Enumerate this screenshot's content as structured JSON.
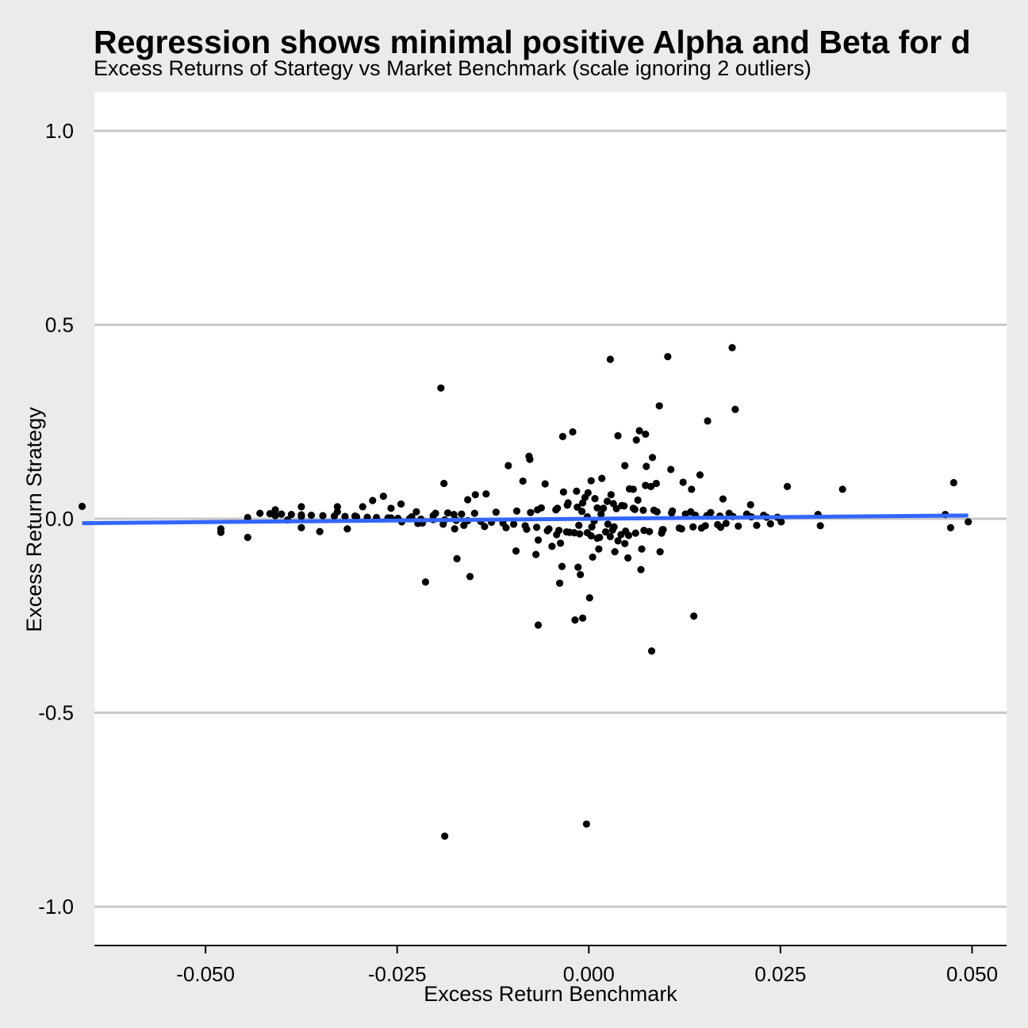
{
  "chart_data": {
    "type": "scatter",
    "title": "Regression shows minimal positive Alpha and Beta for d",
    "subtitle": "Excess Returns of Startegy vs Market Benchmark (scale ignoring 2 outliers)",
    "xlabel": "Excess Return Benchmark",
    "ylabel": "Excess Return Strategy",
    "xlim": [
      -0.0645,
      0.0545
    ],
    "ylim": [
      -1.1,
      1.1
    ],
    "x_ticks": [
      -0.05,
      -0.025,
      0.0,
      0.025,
      0.05
    ],
    "x_tick_labels": [
      "-0.050",
      "-0.025",
      "0.000",
      "0.025",
      "0.050"
    ],
    "y_ticks": [
      1.0,
      0.5,
      0.0,
      -0.5,
      -1.0
    ],
    "y_tick_labels": [
      "1.0",
      "0.5",
      "0.0",
      "-0.5",
      "-1.0"
    ],
    "grid": "horizontal major",
    "colors": {
      "background": "#ebebeb",
      "panel": "#ffffff",
      "grid": "#c8c8c8",
      "points": "#000000",
      "regression_line": "#3366ff"
    },
    "regression": {
      "x": [
        -0.0661,
        0.0495
      ],
      "y": [
        -0.0115,
        0.0085
      ]
    },
    "points": {
      "x": [
        -0.0661,
        -0.048,
        -0.048,
        -0.0445,
        -0.0445,
        -0.0409,
        -0.0409,
        -0.0375,
        -0.0375,
        -0.0375,
        -0.0393,
        -0.0351,
        -0.0328,
        -0.0328,
        -0.0315,
        -0.0305,
        -0.0295,
        -0.0282,
        -0.0268,
        -0.0258,
        -0.0245,
        -0.0225,
        -0.0213,
        -0.02,
        -0.0189,
        -0.0188,
        -0.0172,
        -0.0166,
        -0.0155,
        -0.0148,
        -0.0134,
        -0.0105,
        -0.0095,
        -0.0078,
        -0.0077,
        -0.0066,
        -0.0035,
        -0.0018,
        -0.0034,
        -0.0021,
        -0.0038,
        -0.0008,
        0.0001,
        -0.0003,
        0.0028,
        0.0038,
        0.0047,
        0.0053,
        0.0062,
        0.0066,
        0.0074,
        0.0082,
        0.0075,
        0.0083,
        0.0092,
        0.0103,
        0.0107,
        0.0123,
        0.0155,
        0.0187,
        0.0191,
        0.0137,
        0.0145,
        0.0175,
        0.0211,
        0.0259,
        0.0331,
        0.0476,
        0.0472,
        0.0495,
        0.0465,
        0.0299,
        0.0302,
        -0.0193,
        -0.0223,
        -0.0175,
        -0.0158,
        -0.0066,
        -0.0037,
        -0.0042,
        -0.0014,
        -0.0011,
        -0.0016,
        0.0003,
        -0.0001,
        0.0033,
        0.0074,
        0.0088,
        0.0134,
        0.0068,
        0.0051,
        0.0013,
        0.0034,
        0.0095,
        -0.0184,
        -0.0013,
        -0.0076,
        -0.0043,
        -0.0062,
        -0.0028,
        -0.0008,
        0.0008,
        0.0024,
        0.0032,
        0.0046,
        0.0058,
        0.0071,
        0.0089,
        0.0108,
        0.0126,
        0.0139,
        0.0154,
        0.0171,
        0.0188,
        0.0212,
        0.0232,
        0.0179,
        0.0168,
        0.0152,
        0.0136,
        0.0118,
        0.0097,
        0.0079,
        0.0061,
        0.0042,
        0.0028,
        0.0014,
        0.0003,
        -0.0012,
        -0.0025,
        -0.0039,
        -0.0052,
        -0.0068,
        -0.0083,
        -0.0098,
        -0.0112,
        -0.0127,
        -0.0141,
        -0.0158,
        -0.0173,
        -0.0188,
        -0.0203,
        -0.0219,
        -0.0234,
        -0.0249,
        -0.0262,
        -0.0277,
        -0.0289,
        -0.0303,
        -0.0318,
        -0.0332,
        -0.0347,
        -0.0362,
        -0.0375,
        -0.0388,
        -0.0401,
        -0.0416,
        -0.0429,
        0.0251,
        0.0246,
        0.0237,
        0.0228,
        0.0219,
        0.0206,
        0.0195,
        0.0183,
        0.0172,
        0.0159,
        0.0147,
        0.0133,
        0.0121,
        0.0109,
        0.0096,
        0.0085,
        0.0072,
        0.006,
        0.0048,
        0.0036,
        0.0022,
        0.0011,
        -0.0002,
        -0.0015,
        -0.0029,
        -0.0041,
        -0.0054,
        -0.0067,
        -0.0081,
        -0.0094,
        -0.0108,
        -0.0121,
        -0.0136,
        -0.0149,
        -0.0163,
        -0.0176,
        -0.019,
        -0.0203,
        -0.0217,
        -0.0231,
        -0.0244,
        -0.0258,
        -0.0002,
        0.0007,
        0.0016,
        0.0025,
        -0.0009,
        0.0004,
        0.0019,
        0.0031,
        0.0043,
        -0.0019,
        -0.0027,
        0.0052,
        0.0064,
        0.0011,
        -0.0005,
        0.0038,
        0.0029,
        0.0047,
        -0.0033,
        -0.0048,
        0.0058,
        0.0069,
        0.0081,
        0.0093,
        -0.0057,
        -0.0069,
        -0.0086,
        0.0005,
        0.0017
      ],
      "y": [
        0.032,
        -0.026,
        -0.035,
        0.003,
        -0.048,
        0.023,
        0.008,
        0.031,
        0.006,
        -0.023,
        -0.003,
        -0.033,
        0.031,
        0.018,
        -0.026,
        0.007,
        0.031,
        0.047,
        0.058,
        0.027,
        0.038,
        0.018,
        -0.163,
        0.014,
        0.091,
        -0.818,
        -0.103,
        0.012,
        -0.149,
        0.062,
        0.064,
        0.137,
        -0.083,
        0.161,
        0.153,
        -0.274,
        -0.123,
        -0.261,
        0.212,
        0.224,
        -0.166,
        -0.256,
        -0.204,
        -0.787,
        0.411,
        0.214,
        0.137,
        0.077,
        0.203,
        0.227,
        0.218,
        -0.341,
        0.135,
        0.158,
        0.291,
        0.418,
        0.127,
        0.094,
        0.252,
        0.441,
        0.282,
        -0.251,
        0.113,
        0.051,
        0.036,
        0.083,
        0.076,
        0.093,
        -0.023,
        -0.008,
        0.011,
        0.011,
        -0.018,
        0.337,
        -0.012,
        -0.026,
        0.049,
        -0.055,
        -0.063,
        -0.041,
        -0.125,
        -0.144,
        0.071,
        0.098,
        0.067,
        -0.021,
        0.086,
        0.091,
        0.076,
        -0.131,
        -0.101,
        -0.078,
        -0.085,
        -0.037,
        0.015,
        -0.017,
        0.016,
        0.023,
        0.028,
        0.035,
        0.041,
        0.052,
        0.045,
        0.039,
        0.033,
        0.027,
        0.022,
        0.018,
        0.015,
        0.012,
        0.009,
        0.008,
        0.007,
        0.006,
        0.005,
        0.004,
        -0.012,
        -0.015,
        -0.018,
        -0.021,
        -0.024,
        -0.028,
        -0.033,
        -0.037,
        -0.041,
        -0.046,
        -0.048,
        -0.044,
        -0.039,
        -0.035,
        -0.03,
        -0.026,
        -0.022,
        -0.018,
        -0.014,
        -0.011,
        -0.009,
        -0.007,
        -0.005,
        -0.004,
        -0.003,
        -0.002,
        -0.001,
        0.0,
        0.001,
        0.002,
        0.003,
        0.004,
        0.005,
        0.006,
        0.007,
        0.008,
        0.009,
        0.01,
        0.011,
        0.012,
        0.013,
        0.014,
        -0.008,
        0.004,
        -0.013,
        0.009,
        -0.017,
        0.012,
        -0.019,
        0.014,
        -0.022,
        0.016,
        -0.024,
        0.018,
        -0.026,
        0.02,
        -0.028,
        0.022,
        -0.03,
        0.024,
        -0.032,
        0.026,
        -0.034,
        0.028,
        -0.036,
        0.03,
        -0.034,
        0.027,
        -0.031,
        0.023,
        -0.027,
        0.02,
        -0.023,
        0.017,
        -0.02,
        0.014,
        -0.017,
        0.011,
        -0.014,
        0.008,
        -0.011,
        0.005,
        -0.008,
        0.002,
        0.005,
        -0.006,
        0.012,
        -0.014,
        0.019,
        -0.021,
        0.027,
        -0.029,
        0.034,
        -0.036,
        0.041,
        -0.043,
        0.048,
        -0.05,
        0.055,
        -0.057,
        0.062,
        -0.064,
        0.069,
        -0.071,
        0.076,
        -0.078,
        0.083,
        -0.085,
        0.09,
        -0.092,
        0.097,
        -0.099,
        0.104
      ]
    }
  }
}
